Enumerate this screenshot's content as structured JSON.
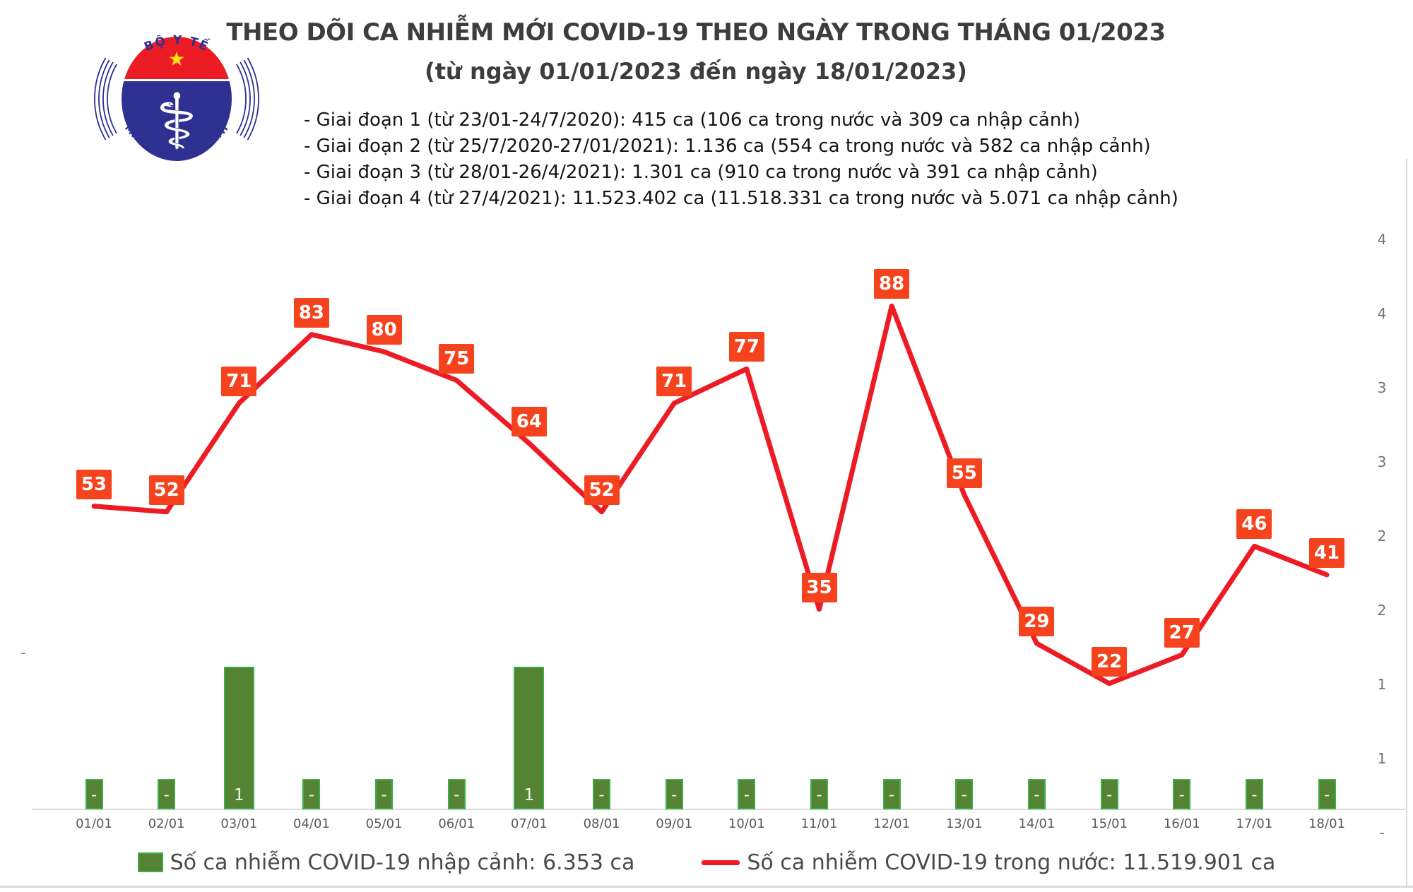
{
  "logo": {
    "top_text": "BỘ Y TẾ",
    "bottom_text": "MINISTRY OF HEALTH",
    "blue": "#2E3192",
    "red": "#EC1C24",
    "star_yellow": "#FFDE17"
  },
  "title": "THEO DÕI CA NHIỄM MỚI COVID-19 THEO NGÀY TRONG THÁNG 01/2023",
  "subtitle": "(từ ngày 01/01/2023 đến ngày 18/01/2023)",
  "notes": [
    "- Giai đoạn 1 (từ 23/01-24/7/2020): 415 ca (106 ca trong nước và 309 ca nhập cảnh)",
    "- Giai đoạn 2 (từ 25/7/2020-27/01/2021): 1.136 ca (554 ca trong nước và 582 ca nhập cảnh)",
    "- Giai đoạn 3 (từ 28/01-26/4/2021): 1.301 ca (910 ca trong nước và 391 ca nhập cảnh)",
    "- Giai đoạn 4 (từ 27/4/2021): 11.523.402 ca (11.518.331 ca trong nước và 5.071 ca nhập cảnh)"
  ],
  "chart_data": {
    "type": "combo",
    "categories": [
      "01/01",
      "02/01",
      "03/01",
      "04/01",
      "05/01",
      "06/01",
      "07/01",
      "08/01",
      "09/01",
      "10/01",
      "11/01",
      "12/01",
      "13/01",
      "14/01",
      "15/01",
      "16/01",
      "17/01",
      "18/01"
    ],
    "series": [
      {
        "name": "Số ca nhiễm COVID-19 nhập cảnh",
        "type": "bar",
        "color": "#558334",
        "border_color": "#3DAE49",
        "values": [
          0,
          0,
          1,
          0,
          0,
          0,
          1,
          0,
          0,
          0,
          0,
          0,
          0,
          0,
          0,
          0,
          0,
          0
        ]
      },
      {
        "name": "Số ca nhiễm COVID-19 trong nước",
        "type": "line",
        "color": "#ED1C24",
        "label_bg": "#F5431E",
        "values": [
          53,
          52,
          71,
          83,
          80,
          75,
          64,
          52,
          71,
          77,
          35,
          88,
          55,
          29,
          22,
          27,
          46,
          41
        ]
      }
    ],
    "zero_label": "-",
    "right_axis_labels": [
      "4",
      "4",
      "3",
      "3",
      "2",
      "2",
      "1",
      "1",
      "-"
    ],
    "left_axis_zero_label": "-",
    "legend_position": "bottom",
    "grid": "off"
  },
  "legend": [
    {
      "swatch": "bar",
      "label": "Số ca nhiễm COVID-19 nhập cảnh: 6.353 ca"
    },
    {
      "swatch": "line",
      "label": "Số ca nhiễm COVID-19 trong nước: 11.519.901 ca"
    }
  ]
}
